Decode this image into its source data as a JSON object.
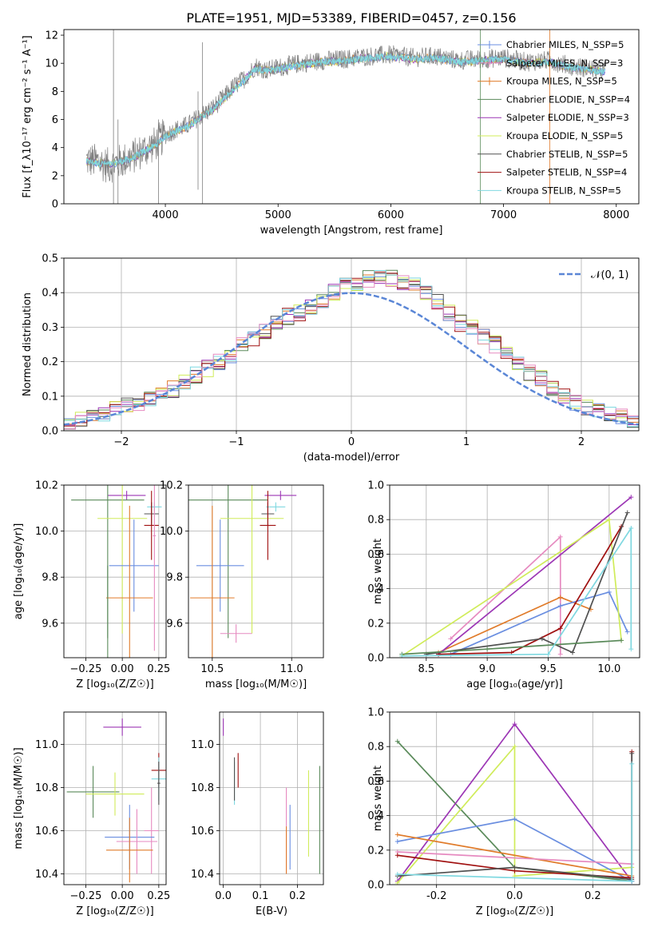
{
  "figure_title": "PLATE=1951, MJD=53389, FIBERID=0457, z=0.156",
  "colors": {
    "grey": "#7f7f7f",
    "orange": "#e07b2a",
    "blue": "#6a8ee0",
    "green": "#5a8a5a",
    "purple": "#9c36b5",
    "yellow": "#d0ec5a",
    "dark": "#505050",
    "red": "#a01010",
    "cyan": "#7fd8e0",
    "pink": "#e68ac0"
  },
  "chart_data": [
    {
      "id": "spectrum",
      "type": "line",
      "title": "",
      "xlabel": "wavelength [Angstrom, rest frame]",
      "ylabel": "Flux [f_λ10⁻¹⁷ erg cm⁻² s⁻¹ A⁻¹]",
      "xlim": [
        3100,
        8200
      ],
      "ylim": [
        0,
        12.4
      ],
      "xticks": [
        4000,
        5000,
        6000,
        7000,
        8000
      ],
      "yticks": [
        0,
        2,
        4,
        6,
        8,
        10,
        12
      ],
      "grid": false,
      "legend_position": "right",
      "legend": [
        {
          "label": "Chabrier MILES, N_SSP=5",
          "color": "#6a8ee0",
          "marker": "plus"
        },
        {
          "label": "Salpeter MILES, N_SSP=3",
          "color": "#e68ac0",
          "marker": "plus"
        },
        {
          "label": "Kroupa MILES, N_SSP=5",
          "color": "#e07b2a",
          "marker": "plus"
        },
        {
          "label": "Chabrier ELODIE, N_SSP=4",
          "color": "#5a8a5a",
          "marker": "line"
        },
        {
          "label": "Salpeter ELODIE, N_SSP=3",
          "color": "#9c36b5",
          "marker": "line"
        },
        {
          "label": "Kroupa ELODIE, N_SSP=5",
          "color": "#d0ec5a",
          "marker": "line"
        },
        {
          "label": "Chabrier STELIB, N_SSP=5",
          "color": "#505050",
          "marker": "line"
        },
        {
          "label": "Salpeter STELIB, N_SSP=4",
          "color": "#a01010",
          "marker": "line"
        },
        {
          "label": "Kroupa STELIB, N_SSP=5",
          "color": "#7fd8e0",
          "marker": "line"
        }
      ],
      "x": [
        3300,
        3400,
        3500,
        3600,
        3700,
        3800,
        3900,
        4000,
        4100,
        4200,
        4300,
        4400,
        4500,
        4600,
        4700,
        4800,
        4900,
        5000,
        5200,
        5400,
        5600,
        5800,
        6000,
        6200,
        6400,
        6600,
        6800,
        7000,
        7200,
        7400,
        7600,
        7800,
        7900
      ],
      "series": [
        {
          "name": "data",
          "color": "#7f7f7f",
          "values": [
            3.1,
            3.0,
            2.7,
            3.0,
            3.3,
            3.8,
            4.2,
            4.9,
            5.3,
            5.6,
            6.2,
            6.7,
            7.4,
            8.3,
            8.9,
            9.8,
            9.5,
            9.7,
            10.0,
            10.2,
            10.3,
            10.5,
            10.6,
            10.4,
            10.5,
            10.2,
            10.3,
            10.4,
            10.1,
            10.2,
            9.8,
            9.6,
            9.5
          ]
        },
        {
          "name": "model",
          "color": "#7fd8e0",
          "values": [
            3.0,
            2.9,
            2.8,
            3.0,
            3.2,
            3.7,
            4.1,
            4.8,
            5.2,
            5.5,
            6.1,
            6.6,
            7.3,
            8.1,
            8.8,
            9.6,
            9.5,
            9.6,
            9.9,
            10.1,
            10.2,
            10.4,
            10.5,
            10.3,
            10.4,
            10.1,
            10.2,
            10.3,
            10.0,
            10.1,
            9.7,
            9.5,
            9.4
          ]
        }
      ]
    },
    {
      "id": "residuals",
      "type": "line",
      "title": "",
      "xlabel": "(data-model)/error",
      "ylabel": "Normed distribution",
      "xlim": [
        -2.5,
        2.5
      ],
      "ylim": [
        0,
        0.5
      ],
      "xticks": [
        -2,
        -1,
        0,
        1,
        2
      ],
      "yticks": [
        0.0,
        0.1,
        0.2,
        0.3,
        0.4,
        0.5
      ],
      "grid": true,
      "legend_position": "top-right",
      "legend": [
        {
          "label": "𝒩(0, 1)",
          "color": "#5a86d6",
          "marker": "dashed"
        }
      ],
      "bin_width": 0.1,
      "bins_start": -2.5,
      "hist_values": [
        0.02,
        0.03,
        0.04,
        0.05,
        0.06,
        0.07,
        0.08,
        0.09,
        0.1,
        0.12,
        0.14,
        0.16,
        0.18,
        0.2,
        0.22,
        0.25,
        0.27,
        0.29,
        0.31,
        0.33,
        0.34,
        0.36,
        0.38,
        0.4,
        0.42,
        0.43,
        0.44,
        0.45,
        0.44,
        0.43,
        0.42,
        0.4,
        0.37,
        0.34,
        0.31,
        0.3,
        0.27,
        0.25,
        0.22,
        0.19,
        0.17,
        0.15,
        0.12,
        0.1,
        0.08,
        0.07,
        0.06,
        0.05,
        0.04,
        0.03
      ]
    },
    {
      "id": "age-vs-Z",
      "type": "scatter",
      "xlabel": "Z [log₁₀(Z/Z☉)]",
      "ylabel": "age  [log₁₀(age/yr)]",
      "xlim": [
        -0.4,
        0.3
      ],
      "ylim": [
        9.45,
        10.2
      ],
      "xticks": [
        -0.25,
        0.0,
        0.25
      ],
      "yticks": [
        9.6,
        9.8,
        10.0,
        10.2
      ],
      "grid": true
    },
    {
      "id": "age-vs-mass",
      "type": "scatter",
      "xlabel": "mass [log₁₀(M/M☉)]",
      "ylabel": "",
      "xlim": [
        10.35,
        11.2
      ],
      "ylim": [
        9.45,
        10.2
      ],
      "xticks": [
        10.5,
        11.0
      ],
      "yticks": [
        9.6,
        9.8,
        10.0,
        10.2
      ],
      "grid": true
    },
    {
      "id": "weight-vs-age",
      "type": "line",
      "xlabel": "age  [log₁₀(age/yr)]",
      "ylabel": "mass weight",
      "xlim": [
        8.2,
        10.25
      ],
      "ylim": [
        0.0,
        1.0
      ],
      "xticks": [
        8.5,
        9.0,
        9.5,
        10.0
      ],
      "yticks": [
        0.0,
        0.2,
        0.4,
        0.6,
        0.8,
        1.0
      ],
      "grid": true
    },
    {
      "id": "mass-vs-Z",
      "type": "scatter",
      "xlabel": "Z [log₁₀(Z/Z☉)]",
      "ylabel": "mass [log₁₀(M/M☉)]",
      "xlim": [
        -0.4,
        0.3
      ],
      "ylim": [
        10.35,
        11.15
      ],
      "xticks": [
        -0.25,
        0.0,
        0.25
      ],
      "yticks": [
        10.4,
        10.6,
        10.8,
        11.0
      ],
      "grid": true
    },
    {
      "id": "mass-vs-ebv",
      "type": "scatter",
      "xlabel": "E(B-V)",
      "ylabel": "",
      "xlim": [
        -0.01,
        0.27
      ],
      "ylim": [
        10.35,
        11.15
      ],
      "xticks": [
        0.0,
        0.1,
        0.2
      ],
      "yticks": [
        10.4,
        10.6,
        10.8,
        11.0
      ],
      "grid": true
    },
    {
      "id": "weight-vs-Z",
      "type": "line",
      "xlabel": "Z [log₁₀(Z/Z☉)]",
      "ylabel": "mass weight",
      "xlim": [
        -0.32,
        0.32
      ],
      "ylim": [
        0.0,
        1.0
      ],
      "xticks": [
        -0.2,
        0.0,
        0.2
      ],
      "yticks": [
        0.0,
        0.2,
        0.4,
        0.6,
        0.8,
        1.0
      ],
      "grid": true
    }
  ]
}
